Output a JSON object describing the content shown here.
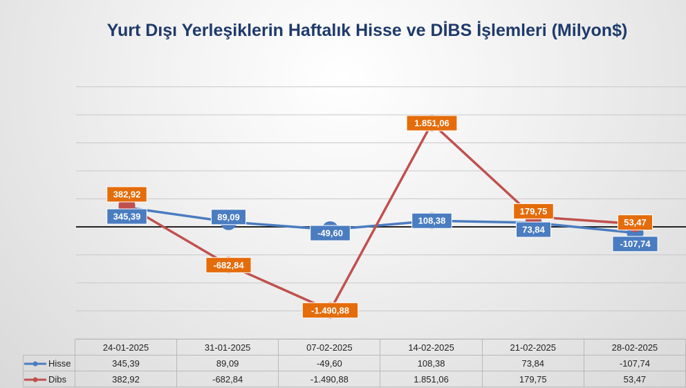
{
  "chart_data": {
    "type": "line",
    "title": "Yurt Dışı Yerleşiklerin Haftalık Hisse ve DİBS İşlemleri (Milyon$)",
    "categories": [
      "24-01-2025",
      "31-01-2025",
      "07-02-2025",
      "14-02-2025",
      "21-02-2025",
      "28-02-2025"
    ],
    "series": [
      {
        "name": "Hisse",
        "color": "#4a7cc0",
        "values": [
          345.39,
          89.09,
          -49.6,
          108.38,
          73.84,
          -107.74
        ],
        "labels": [
          "345,39",
          "89,09",
          "-49,60",
          "108,38",
          "73,84",
          "-107,74"
        ]
      },
      {
        "name": "Dibs",
        "color": "#c0504d",
        "label_color": "#e46c0a",
        "values": [
          382.92,
          -682.84,
          -1490.88,
          1851.06,
          179.75,
          53.47
        ],
        "labels": [
          "382,92",
          "-682,84",
          "-1.490,88",
          "1.851,06",
          "179,75",
          "53,47"
        ]
      }
    ],
    "ylim": [
      -2000,
      3000
    ],
    "grid": true,
    "legend": "data-table"
  }
}
